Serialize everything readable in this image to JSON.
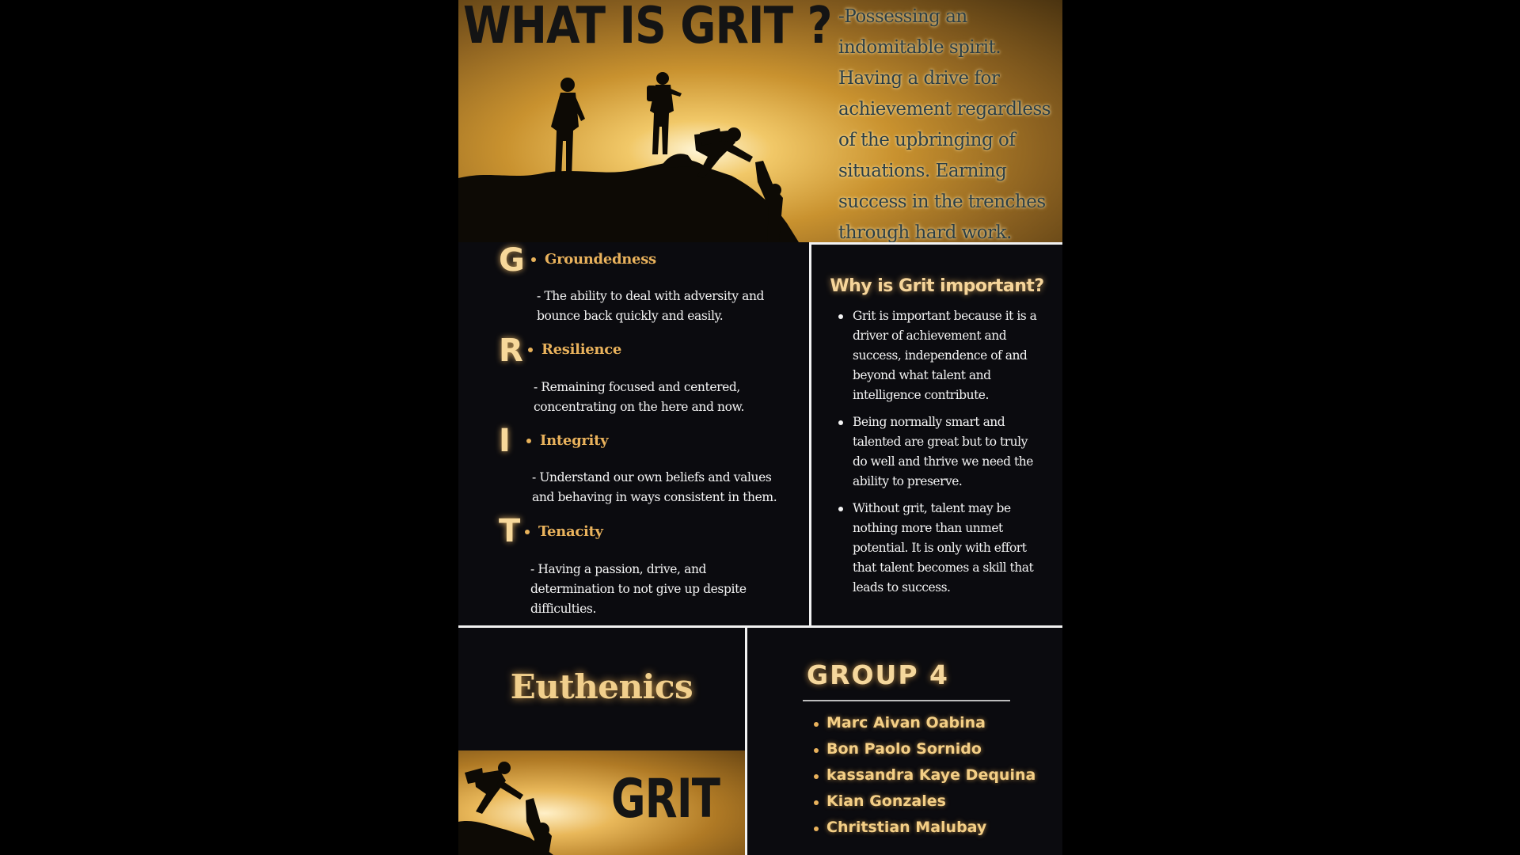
{
  "hero": {
    "title": "WHAT IS GRIT ?",
    "definition": "-Possessing an indomitable spirit. Having a drive for achievement regardless of the upbringing of situations. Earning success in the trenches through hard work."
  },
  "grit_acronym": [
    {
      "letter": "G",
      "word": "Groundedness",
      "description": "- The ability to deal with adversity and bounce back quickly and easily."
    },
    {
      "letter": "R",
      "word": "Resilience",
      "description": "- Remaining focused and centered, concentrating on the here and now."
    },
    {
      "letter": "I",
      "word": "Integrity",
      "description": "- Understand our own beliefs and values and behaving in ways consistent in them."
    },
    {
      "letter": "T",
      "word": "Tenacity",
      "description": "- Having a passion, drive, and determination to not give up despite difficulties."
    }
  ],
  "why": {
    "title": "Why is Grit important?",
    "points": [
      "Grit is important because it is a driver of achievement and success, independence of and beyond what talent and intelligence contribute.",
      "Being normally smart and talented are great but to truly do well and thrive we need the ability to preserve.",
      "Without grit, talent may be nothing more than unmet potential. It is only with effort that talent becomes a skill that leads to success."
    ]
  },
  "course": "Euthenics",
  "image_word": "GRIT",
  "group": {
    "title": "GROUP 4",
    "members": [
      "Marc Aivan Oabina",
      "Bon Paolo Sornido",
      "kassandra Kaye Dequina",
      "Kian Gonzales",
      "Chritstian Malubay"
    ]
  },
  "colors": {
    "accent_gold": "#e9b25c",
    "glow_text": "#f6d59a",
    "background": "#0b0b0f"
  }
}
